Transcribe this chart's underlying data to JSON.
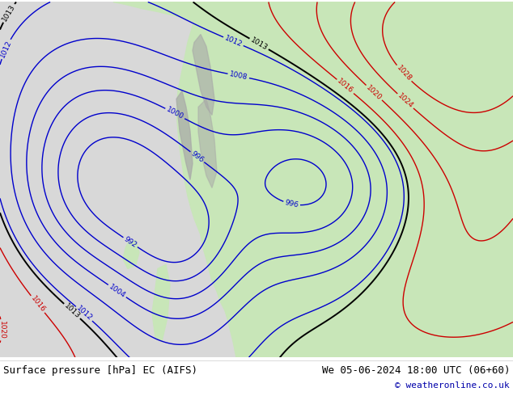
{
  "title_left": "Surface pressure [hPa] EC (AIFS)",
  "title_right": "We 05-06-2024 18:00 UTC (06+60)",
  "copyright": "© weatheronline.co.uk",
  "land_color": "#c8e6b8",
  "ocean_color": "#d8d8d8",
  "mountain_color": "#a8a8a8",
  "blue_contour_color": "#0000cc",
  "red_contour_color": "#cc0000",
  "black_contour_color": "#000000",
  "label_fontsize": 6.5,
  "title_fontsize": 9,
  "copyright_fontsize": 8,
  "figwidth": 6.34,
  "figheight": 4.9,
  "dpi": 100
}
